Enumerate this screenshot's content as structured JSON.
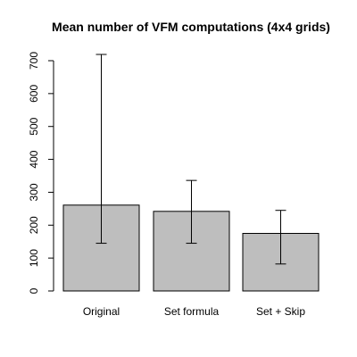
{
  "chart_data": {
    "type": "bar",
    "title": "Mean number of VFM computations (4x4 grids)",
    "xlabel": "",
    "ylabel": "",
    "categories": [
      "Original",
      "Set formula",
      "Set + Skip"
    ],
    "values": [
      261,
      242,
      175
    ],
    "error_low": [
      145,
      145,
      82
    ],
    "error_high": [
      719,
      336,
      245
    ],
    "ylim": [
      0,
      720
    ],
    "yticks": [
      0,
      100,
      200,
      300,
      400,
      500,
      600,
      700
    ],
    "grid": false,
    "legend": "none",
    "bar_color": "#bebebe"
  }
}
